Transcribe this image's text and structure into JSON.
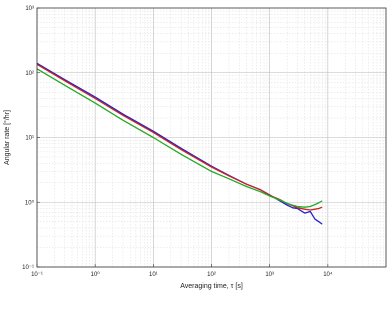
{
  "chart_data": {
    "type": "line",
    "title": "",
    "xlabel": "Averaging time, τ [s]",
    "ylabel": "Angular rate [°/hr]",
    "xscale": "log",
    "yscale": "log",
    "xlim": [
      0.1,
      100000
    ],
    "ylim": [
      0.1,
      1000
    ],
    "grid": true,
    "x_ticks": [
      {
        "value": 0.1,
        "label": "10⁻¹"
      },
      {
        "value": 1,
        "label": "10⁰"
      },
      {
        "value": 10,
        "label": "10¹"
      },
      {
        "value": 100,
        "label": "10²"
      },
      {
        "value": 1000,
        "label": "10³"
      },
      {
        "value": 10000,
        "label": "10⁴"
      }
    ],
    "y_ticks": [
      {
        "value": 0.1,
        "label": "10⁻¹"
      },
      {
        "value": 1,
        "label": "10⁰"
      },
      {
        "value": 10,
        "label": "10¹"
      },
      {
        "value": 100,
        "label": "10²"
      },
      {
        "value": 1000,
        "label": "10³"
      }
    ],
    "series": [
      {
        "color": "#2222cc",
        "points": [
          [
            0.1,
            140
          ],
          [
            0.3,
            78
          ],
          [
            1,
            42
          ],
          [
            3,
            23
          ],
          [
            10,
            12.5
          ],
          [
            30,
            6.8
          ],
          [
            100,
            3.6
          ],
          [
            200,
            2.6
          ],
          [
            400,
            1.9
          ],
          [
            700,
            1.55
          ],
          [
            1000,
            1.3
          ],
          [
            1500,
            1.05
          ],
          [
            2000,
            0.9
          ],
          [
            2500,
            0.82
          ],
          [
            3000,
            0.8
          ],
          [
            4000,
            0.68
          ],
          [
            5000,
            0.72
          ],
          [
            6000,
            0.55
          ],
          [
            7000,
            0.5
          ],
          [
            8000,
            0.46
          ]
        ]
      },
      {
        "color": "#cc2222",
        "points": [
          [
            0.1,
            135
          ],
          [
            0.3,
            75
          ],
          [
            1,
            40
          ],
          [
            3,
            22
          ],
          [
            10,
            12
          ],
          [
            30,
            6.5
          ],
          [
            100,
            3.5
          ],
          [
            200,
            2.55
          ],
          [
            400,
            1.9
          ],
          [
            700,
            1.55
          ],
          [
            1000,
            1.28
          ],
          [
            1500,
            1.1
          ],
          [
            2000,
            0.95
          ],
          [
            2500,
            0.88
          ],
          [
            3000,
            0.82
          ],
          [
            4000,
            0.78
          ],
          [
            5000,
            0.76
          ],
          [
            6000,
            0.78
          ],
          [
            7000,
            0.8
          ],
          [
            8000,
            0.84
          ]
        ]
      },
      {
        "color": "#22aa22",
        "points": [
          [
            0.1,
            115
          ],
          [
            0.3,
            64
          ],
          [
            1,
            34
          ],
          [
            3,
            18.5
          ],
          [
            10,
            10
          ],
          [
            30,
            5.5
          ],
          [
            100,
            3
          ],
          [
            200,
            2.3
          ],
          [
            400,
            1.75
          ],
          [
            700,
            1.45
          ],
          [
            1000,
            1.25
          ],
          [
            1500,
            1.08
          ],
          [
            2000,
            0.96
          ],
          [
            2500,
            0.9
          ],
          [
            3000,
            0.86
          ],
          [
            4000,
            0.84
          ],
          [
            5000,
            0.86
          ],
          [
            6000,
            0.92
          ],
          [
            7000,
            0.98
          ],
          [
            8000,
            1.05
          ]
        ]
      }
    ]
  }
}
